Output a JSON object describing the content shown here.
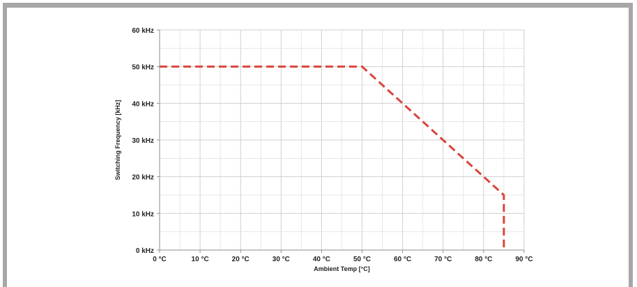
{
  "chart_data": {
    "type": "line",
    "title": "",
    "xlabel": "Ambient Temp [°C]",
    "ylabel": "Switching Frequency [kHz]",
    "xlim": [
      0,
      90
    ],
    "ylim": [
      0,
      60
    ],
    "x_ticks": [
      0,
      10,
      20,
      30,
      40,
      50,
      60,
      70,
      80,
      90
    ],
    "x_tick_labels": [
      "0 °C",
      "10 °C",
      "20 °C",
      "30 °C",
      "40 °C",
      "50 °C",
      "60 °C",
      "70 °C",
      "80 °C",
      "90 °C"
    ],
    "y_ticks": [
      0,
      10,
      20,
      30,
      40,
      50,
      60
    ],
    "y_tick_labels": [
      "0 kHz",
      "10 kHz",
      "20 kHz",
      "30 kHz",
      "40 kHz",
      "50 kHz",
      "60 kHz"
    ],
    "grid": true,
    "minor_grid_divisions": 2,
    "series": [
      {
        "x": [
          0,
          50,
          85,
          85
        ],
        "y": [
          50,
          50,
          15,
          0
        ],
        "color": "#d9453a",
        "style": "dashed"
      }
    ]
  }
}
